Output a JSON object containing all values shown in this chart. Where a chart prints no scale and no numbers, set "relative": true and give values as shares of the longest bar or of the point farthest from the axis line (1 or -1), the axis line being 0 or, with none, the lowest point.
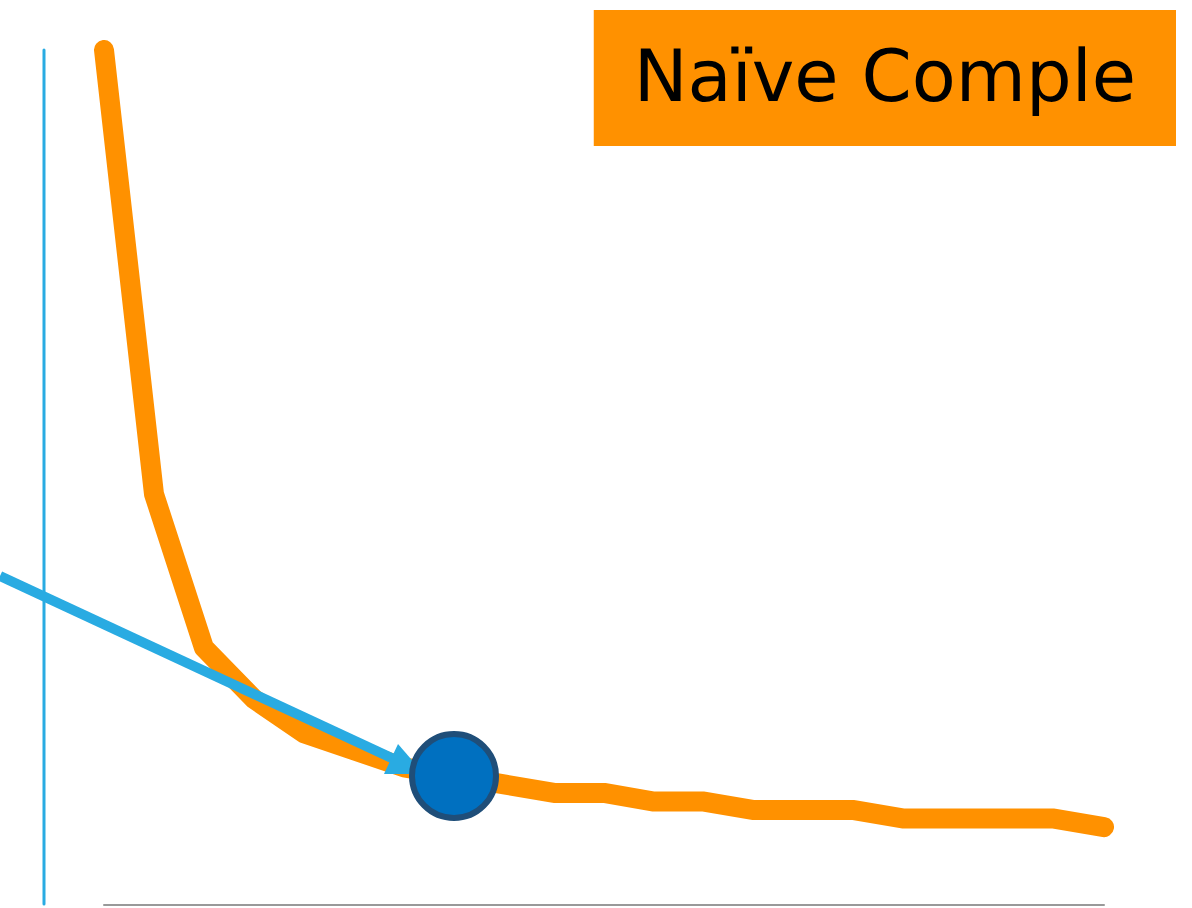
{
  "chart_data": {
    "type": "line",
    "title": "Naïve Comple",
    "relative": true,
    "categories": [
      null,
      null,
      null,
      null,
      null,
      null,
      null,
      null,
      null,
      null,
      null,
      null,
      null,
      null,
      null,
      null,
      null,
      null,
      null,
      null,
      null
    ],
    "series": [
      {
        "color": "#ff9100",
        "values": [
          1,
          0.48,
          0.3,
          0.24,
          0.2,
          0.18,
          0.16,
          null,
          0.14,
          0.13,
          0.13,
          0.12,
          0.12,
          0.11,
          0.11,
          0.11,
          0.1,
          0.1,
          0.1,
          0.1,
          0.09
        ]
      }
    ]
  }
}
